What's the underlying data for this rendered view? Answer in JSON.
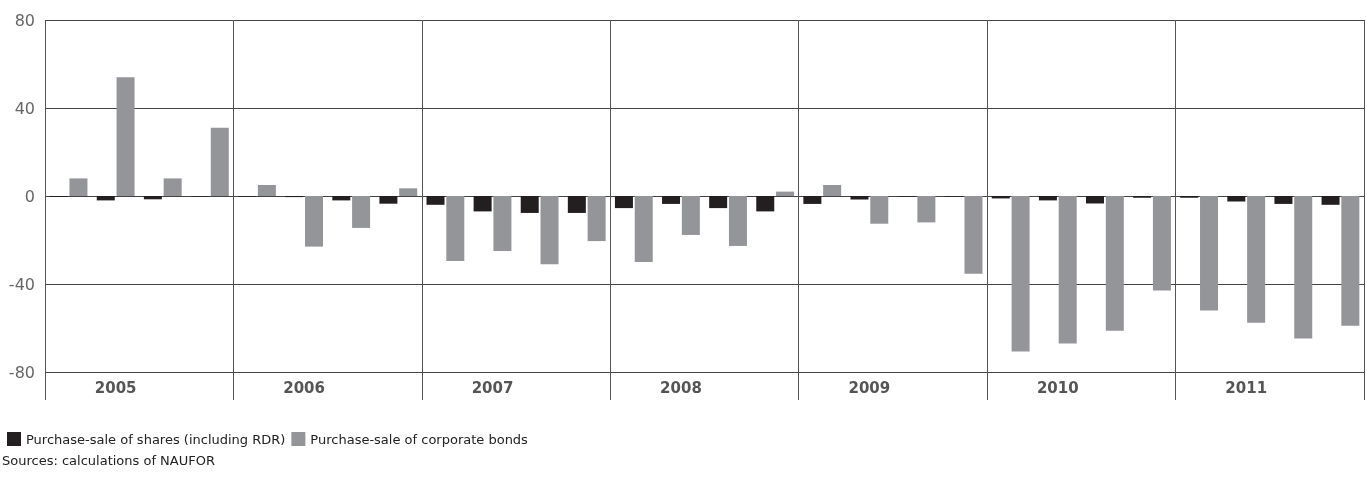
{
  "chart_data": {
    "type": "bar",
    "categories": [
      null,
      "2005",
      null,
      null,
      null,
      "2006",
      null,
      null,
      null,
      "2007",
      null,
      null,
      null,
      "2008",
      null,
      null,
      null,
      "2009",
      null,
      null,
      null,
      "2010",
      null,
      null,
      null,
      "2011",
      null,
      null
    ],
    "series": [
      {
        "name": "Purchase-sale of shares (including RDR)",
        "color": "#231f20",
        "values": [
          -0.5,
          -2,
          -1.5,
          -0.3,
          -0.3,
          -0.5,
          -2,
          -3.5,
          -4,
          -7,
          -7.7,
          -7.7,
          -5.5,
          -3.6,
          -5.5,
          -7,
          -3.6,
          -1.6,
          -0.3,
          -0.3,
          -1.1,
          -2,
          -3.4,
          -0.8,
          -0.8,
          -2.5,
          -3.6,
          -4
        ]
      },
      {
        "name": "Purchase-sale of corporate bonds",
        "color": "#939598",
        "values": [
          8,
          54,
          8,
          31,
          5,
          -23,
          -14.5,
          3.5,
          -29.5,
          -25,
          -31,
          -20.5,
          -30,
          -17.7,
          -22.7,
          2,
          5,
          -12.6,
          -12,
          -35.3,
          -70.7,
          -67,
          -61.2,
          -43,
          -52,
          -57.6,
          -64.8,
          -59
        ]
      }
    ],
    "ylim": [
      -80,
      80
    ],
    "yticks": [
      -80,
      -40,
      0,
      40,
      80
    ],
    "grid": true,
    "legend": "bottom left",
    "annotations": [
      "Sources: calculations of NAUFOR"
    ]
  }
}
